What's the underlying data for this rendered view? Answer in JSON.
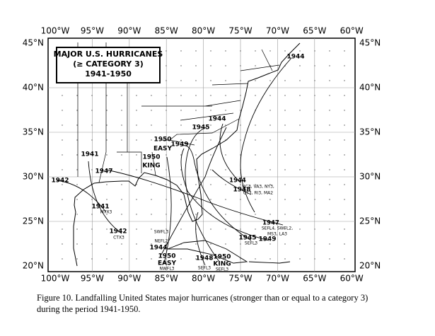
{
  "map": {
    "title": [
      "MAJOR U.S. HURRICANES",
      "(≥ CATEGORY 3)",
      "1941-1950"
    ],
    "lon_labels": [
      "100°W",
      "95°W",
      "90°W",
      "85°W",
      "80°W",
      "75°W",
      "70°W",
      "65°W",
      "60°W"
    ],
    "lat_labels": [
      "45°N",
      "40°N",
      "35°N",
      "30°N",
      "25°N",
      "20°N"
    ],
    "labels": [
      "1944",
      "1944",
      "1945",
      "1950",
      "EASY",
      "1950",
      "KING",
      "1949",
      "1941",
      "1947",
      "1942",
      "1944",
      "NC3, VA3, NY3,",
      "CT3, RI3, MA2",
      "1948",
      "1941",
      "MTX3",
      "1942",
      "CTX3",
      "1947",
      "SEFL4, SWFL2,",
      "MS3, LA3",
      "1945",
      "SEFL3",
      "1949",
      "SWFL3",
      "NEFL2",
      "1944",
      "1950",
      "EASY",
      "NWFL3",
      "1948",
      "SEFL3",
      "1950",
      "KING",
      "SEFL3"
    ]
  },
  "caption": [
    "Figure 10. Landfalling United States major hurricanes (stronger than or equal to a category 3)",
    "during the period 1941-1950."
  ]
}
